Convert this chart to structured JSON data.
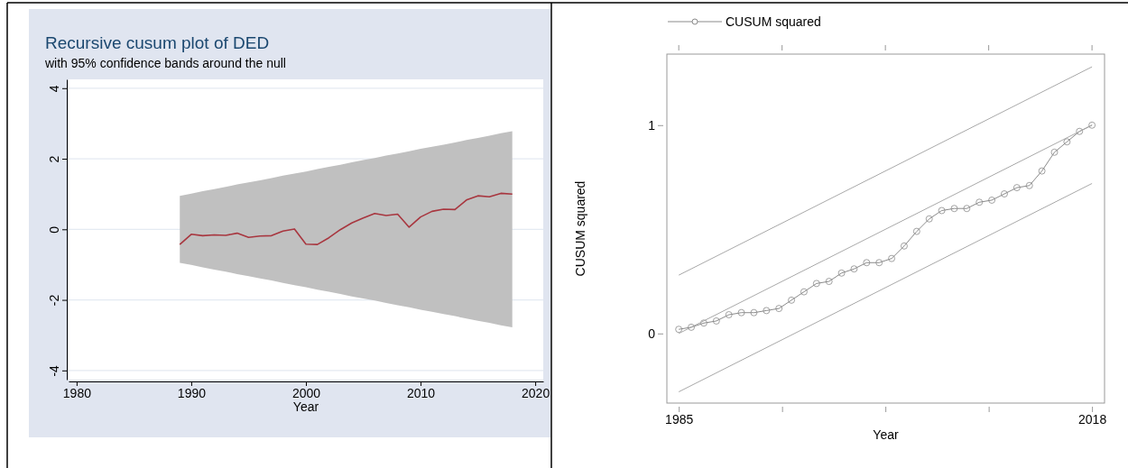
{
  "chart_data": [
    {
      "type": "line",
      "title": "Recursive cusum plot of DED",
      "subtitle": "with 95% confidence bands around the null",
      "xlabel": "Year",
      "x": [
        1989,
        1990,
        1991,
        1992,
        1993,
        1994,
        1995,
        1996,
        1997,
        1998,
        1999,
        2000,
        2001,
        2002,
        2003,
        2004,
        2005,
        2006,
        2007,
        2008,
        2009,
        2010,
        2011,
        2012,
        2013,
        2014,
        2015,
        2016,
        2017,
        2018
      ],
      "series": [
        {
          "color": "#a8363f",
          "values": [
            -0.43,
            -0.14,
            -0.18,
            -0.16,
            -0.17,
            -0.11,
            -0.23,
            -0.19,
            -0.18,
            -0.05,
            0.01,
            -0.42,
            -0.43,
            -0.24,
            -0.01,
            0.18,
            0.32,
            0.45,
            0.39,
            0.43,
            0.06,
            0.35,
            0.51,
            0.57,
            0.56,
            0.83,
            0.95,
            0.92,
            1.02,
            1.0
          ],
          "upper": [
            0.95,
            1.01,
            1.08,
            1.14,
            1.2,
            1.27,
            1.33,
            1.39,
            1.45,
            1.52,
            1.58,
            1.64,
            1.71,
            1.77,
            1.83,
            1.9,
            1.96,
            2.02,
            2.09,
            2.15,
            2.21,
            2.28,
            2.34,
            2.4,
            2.46,
            2.53,
            2.59,
            2.65,
            2.72,
            2.78
          ],
          "lower": [
            -0.95,
            -1.01,
            -1.08,
            -1.14,
            -1.2,
            -1.27,
            -1.33,
            -1.39,
            -1.45,
            -1.52,
            -1.58,
            -1.64,
            -1.71,
            -1.77,
            -1.83,
            -1.9,
            -1.96,
            -2.02,
            -2.09,
            -2.15,
            -2.21,
            -2.28,
            -2.34,
            -2.4,
            -2.46,
            -2.53,
            -2.59,
            -2.65,
            -2.72,
            -2.78
          ]
        }
      ],
      "xlim": [
        1979.3,
        2020.7
      ],
      "xticks": [
        1980,
        1990,
        2000,
        2010,
        2020
      ],
      "ylim": [
        -4.26,
        4.25
      ],
      "yticks": [
        -4,
        -2,
        0,
        2,
        4
      ],
      "grid": "y"
    },
    {
      "type": "line",
      "xlabel": "Year",
      "ylabel": "CUSUM squared",
      "legend": "top",
      "marker": "circle",
      "series": [
        {
          "name": "CUSUM squared",
          "color": "#8a8a8a",
          "x": [
            1985,
            1986,
            1987,
            1988,
            1989,
            1990,
            1991,
            1992,
            1993,
            1994,
            1995,
            1996,
            1997,
            1998,
            1999,
            2000,
            2001,
            2002,
            2003,
            2004,
            2005,
            2006,
            2007,
            2008,
            2009,
            2010,
            2011,
            2012,
            2013,
            2014,
            2015,
            2016,
            2017,
            2018
          ],
          "values": [
            0.02,
            0.03,
            0.05,
            0.06,
            0.09,
            0.1,
            0.1,
            0.11,
            0.12,
            0.16,
            0.2,
            0.24,
            0.25,
            0.29,
            0.31,
            0.34,
            0.34,
            0.36,
            0.42,
            0.49,
            0.55,
            0.59,
            0.6,
            0.6,
            0.63,
            0.64,
            0.67,
            0.7,
            0.71,
            0.78,
            0.87,
            0.92,
            0.97,
            1.0
          ]
        },
        {
          "color": "#a8a8a8",
          "marker": "none",
          "x": [
            1985,
            2018
          ],
          "values": [
            0.28,
            1.28
          ]
        },
        {
          "color": "#a8a8a8",
          "marker": "none",
          "x": [
            1985,
            2018
          ],
          "values": [
            0.0,
            1.0
          ]
        },
        {
          "color": "#a8a8a8",
          "marker": "none",
          "x": [
            1985,
            2018
          ],
          "values": [
            -0.28,
            0.72
          ]
        }
      ],
      "xlim": [
        1984.05,
        2019.0
      ],
      "xticks": [
        1985,
        {
          "value": 1993.25,
          "label": null
        },
        {
          "value": 2001.5,
          "label": null
        },
        {
          "value": 2009.75,
          "label": null
        },
        2018
      ],
      "ylim": [
        -0.334,
        1.341
      ],
      "yticks": [
        0,
        1
      ]
    }
  ]
}
